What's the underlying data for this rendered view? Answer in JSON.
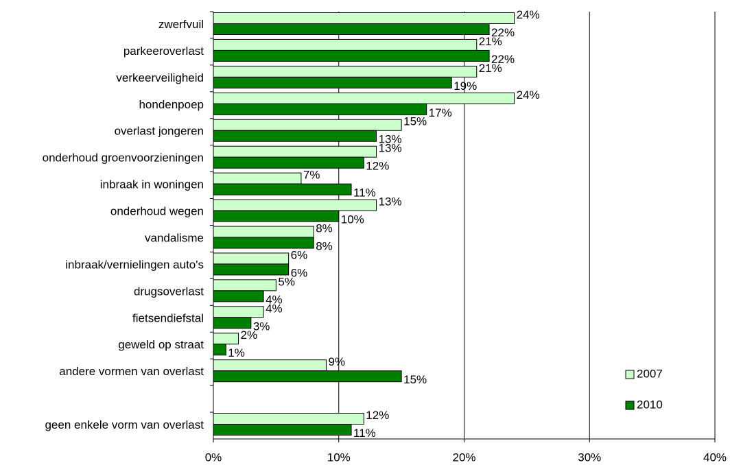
{
  "chart_data": {
    "type": "bar",
    "orientation": "horizontal",
    "categories": [
      "zwerfvuil",
      "parkeeroverlast",
      "verkeerveiligheid",
      "hondenpoep",
      "overlast jongeren",
      "onderhoud groenvoorzieningen",
      "inbraak in woningen",
      "onderhoud wegen",
      "vandalisme",
      "inbraak/vernielingen auto's",
      "drugsoverlast",
      "fietsendiefstal",
      "geweld op straat",
      "andere vormen van overlast",
      null,
      "geen enkele vorm van overlast"
    ],
    "series": [
      {
        "name": "2007",
        "color": "#ccffcc",
        "values": [
          24,
          21,
          21,
          24,
          15,
          13,
          7,
          13,
          8,
          6,
          5,
          4,
          2,
          9,
          null,
          12
        ],
        "value_labels": [
          "24%",
          "21%",
          "21%",
          "24%",
          "15%",
          "13%",
          "7%",
          "13%",
          "8%",
          "6%",
          "5%",
          "4%",
          "2%",
          "9%",
          null,
          "12%"
        ]
      },
      {
        "name": "2010",
        "color": "#008000",
        "values": [
          22,
          22,
          19,
          17,
          13,
          12,
          11,
          10,
          8,
          6,
          4,
          3,
          1,
          15,
          null,
          11
        ],
        "value_labels": [
          "22%",
          "22%",
          "19%",
          "17%",
          "13%",
          "12%",
          "11%",
          "10%",
          "8%",
          "6%",
          "4%",
          "3%",
          "1%",
          "15%",
          null,
          "11%"
        ]
      }
    ],
    "xlim": [
      0,
      40
    ],
    "xticks": [
      {
        "value": 0,
        "label": "0%"
      },
      {
        "value": 10,
        "label": "10%"
      },
      {
        "value": 20,
        "label": "20%"
      },
      {
        "value": 30,
        "label": "30%"
      },
      {
        "value": 40,
        "label": "40%"
      }
    ],
    "grid": true,
    "legend": "lower right"
  }
}
